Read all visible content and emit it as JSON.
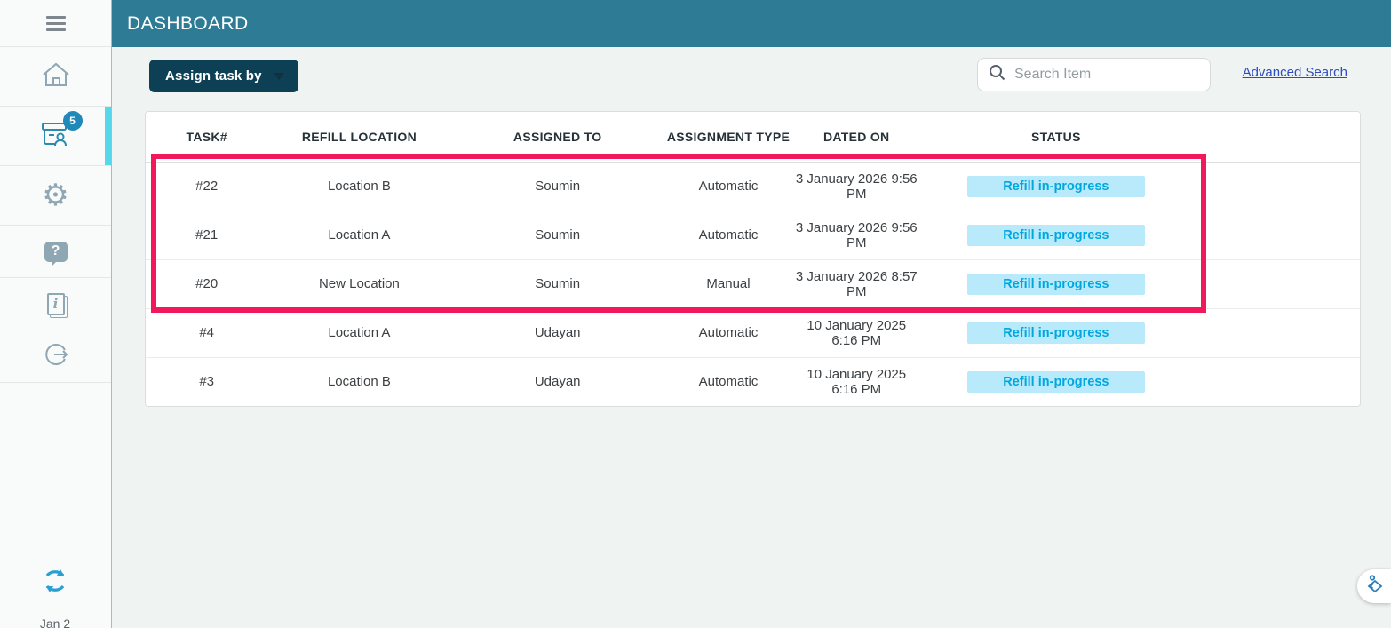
{
  "header": {
    "title": "DASHBOARD"
  },
  "sidebar": {
    "tasks_badge": "5",
    "footer_text": "Jan 2",
    "icons": [
      "menu-icon",
      "home-icon",
      "tasks-icon",
      "settings-gear-icon",
      "help-icon",
      "info-icon",
      "logout-icon",
      "sync-icon"
    ]
  },
  "toolbar": {
    "assign_button_label": "Assign task by",
    "search_placeholder": "Search Item",
    "advanced_search_label": "Advanced Search"
  },
  "table": {
    "columns": [
      "TASK#",
      "REFILL LOCATION",
      "ASSIGNED TO",
      "ASSIGNMENT TYPE",
      "DATED ON",
      "STATUS"
    ],
    "rows": [
      {
        "task": "#22",
        "location": "Location B",
        "assigned": "Soumin",
        "type": "Automatic",
        "dated": "3 January 2026 9:56 PM",
        "status": "Refill in-progress"
      },
      {
        "task": "#21",
        "location": "Location A",
        "assigned": "Soumin",
        "type": "Automatic",
        "dated": "3 January 2026 9:56 PM",
        "status": "Refill in-progress"
      },
      {
        "task": "#20",
        "location": "New Location",
        "assigned": "Soumin",
        "type": "Manual",
        "dated": "3 January 2026 8:57 PM",
        "status": "Refill in-progress"
      },
      {
        "task": "#4",
        "location": "Location A",
        "assigned": "Udayan",
        "type": "Automatic",
        "dated": "10 January 2025 6:16 PM",
        "status": "Refill in-progress"
      },
      {
        "task": "#3",
        "location": "Location B",
        "assigned": "Udayan",
        "type": "Automatic",
        "dated": "10 January 2025 6:16 PM",
        "status": "Refill in-progress"
      }
    ],
    "column_widths_pct": [
      10,
      15,
      17.5,
      10.5,
      10.5,
      22.2,
      13.8
    ],
    "highlighted_row_tasks": [
      "#22",
      "#21",
      "#20"
    ]
  },
  "colors": {
    "header_teal": "#2e7b95",
    "button_teal": "#0d4054",
    "active_cyan": "#55d7ec",
    "annotation_pink": "#f1195b",
    "status_chip_bg": "#b8eafc",
    "status_chip_text": "#00a7df",
    "link_blue": "#2d4cc0",
    "badge_blue": "#2089b8"
  }
}
